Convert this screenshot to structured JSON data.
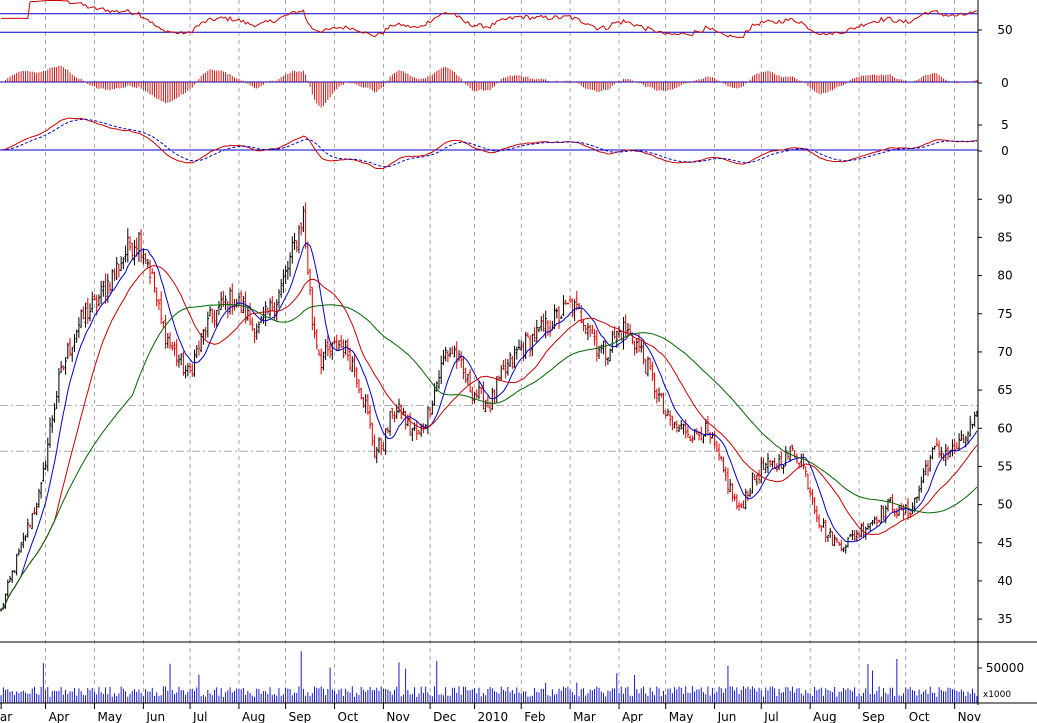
{
  "chart_data": {
    "type": "candlestick",
    "x_axis": {
      "months": [
        "ar",
        "Apr",
        "May",
        "Jun",
        "Jul",
        "Aug",
        "Sep",
        "Oct",
        "Nov",
        "Dec",
        "2010",
        "Feb",
        "Mar",
        "Apr",
        "May",
        "Jun",
        "Jul",
        "Aug",
        "Sep",
        "Oct",
        "Nov"
      ],
      "month_starts": [
        0,
        20,
        42,
        64,
        85,
        107,
        128,
        150,
        172,
        193,
        213,
        234,
        256,
        278,
        299,
        321,
        342,
        364,
        386,
        407,
        429
      ],
      "n_days": 440
    },
    "panels": {
      "rsi": {
        "yticks": [
          "50"
        ],
        "guides": [
          70,
          30
        ],
        "ylim": [
          0,
          100
        ]
      },
      "histogram": {
        "yticks": [
          "0"
        ],
        "ylim": [
          -4,
          2.5
        ]
      },
      "macd": {
        "yticks": [
          "5",
          "0"
        ],
        "ylim": [
          -5,
          8
        ]
      },
      "price": {
        "yticks": [
          "90",
          "85",
          "80",
          "75",
          "70",
          "65",
          "60",
          "55",
          "50",
          "45",
          "40",
          "35"
        ],
        "ylim": [
          32,
          92
        ],
        "guides": [
          63,
          57
        ]
      },
      "volume": {
        "yticks": [
          "50000"
        ],
        "unit_label": "x1000",
        "ylim": [
          0,
          80000
        ]
      }
    },
    "price_anchors": [
      [
        0,
        36
      ],
      [
        5,
        41
      ],
      [
        12,
        47
      ],
      [
        18,
        52
      ],
      [
        22,
        60
      ],
      [
        26,
        66
      ],
      [
        30,
        70
      ],
      [
        34,
        73
      ],
      [
        38,
        75
      ],
      [
        42,
        76
      ],
      [
        46,
        78
      ],
      [
        50,
        80
      ],
      [
        54,
        82
      ],
      [
        58,
        84
      ],
      [
        62,
        85
      ],
      [
        66,
        82
      ],
      [
        69,
        78
      ],
      [
        72,
        74
      ],
      [
        76,
        71
      ],
      [
        80,
        69
      ],
      [
        84,
        67
      ],
      [
        88,
        70
      ],
      [
        92,
        73
      ],
      [
        96,
        75
      ],
      [
        100,
        76
      ],
      [
        104,
        77
      ],
      [
        108,
        76
      ],
      [
        112,
        74
      ],
      [
        116,
        73
      ],
      [
        120,
        75
      ],
      [
        124,
        77
      ],
      [
        128,
        80
      ],
      [
        132,
        84
      ],
      [
        136,
        88
      ],
      [
        140,
        74
      ],
      [
        144,
        69
      ],
      [
        148,
        70
      ],
      [
        152,
        71
      ],
      [
        156,
        70
      ],
      [
        160,
        67
      ],
      [
        164,
        63
      ],
      [
        168,
        57
      ],
      [
        172,
        58
      ],
      [
        176,
        62
      ],
      [
        180,
        62
      ],
      [
        184,
        60
      ],
      [
        188,
        59
      ],
      [
        192,
        62
      ],
      [
        196,
        66
      ],
      [
        200,
        70
      ],
      [
        204,
        70
      ],
      [
        208,
        67
      ],
      [
        212,
        65
      ],
      [
        216,
        64
      ],
      [
        220,
        63
      ],
      [
        224,
        66
      ],
      [
        228,
        68
      ],
      [
        232,
        70
      ],
      [
        236,
        71
      ],
      [
        240,
        72
      ],
      [
        244,
        73
      ],
      [
        248,
        74
      ],
      [
        252,
        75
      ],
      [
        256,
        76
      ],
      [
        260,
        75
      ],
      [
        264,
        74
      ],
      [
        268,
        71
      ],
      [
        272,
        70
      ],
      [
        276,
        72
      ],
      [
        280,
        73
      ],
      [
        284,
        72
      ],
      [
        288,
        70
      ],
      [
        292,
        67
      ],
      [
        296,
        64
      ],
      [
        300,
        61
      ],
      [
        304,
        60
      ],
      [
        308,
        60
      ],
      [
        312,
        59
      ],
      [
        316,
        60
      ],
      [
        320,
        58
      ],
      [
        324,
        55
      ],
      [
        328,
        52
      ],
      [
        332,
        49
      ],
      [
        336,
        52
      ],
      [
        340,
        54
      ],
      [
        344,
        55
      ],
      [
        348,
        55
      ],
      [
        352,
        56
      ],
      [
        356,
        57
      ],
      [
        360,
        56
      ],
      [
        364,
        52
      ],
      [
        368,
        48
      ],
      [
        372,
        46
      ],
      [
        376,
        45
      ],
      [
        380,
        45
      ],
      [
        384,
        46
      ],
      [
        388,
        47
      ],
      [
        392,
        48
      ],
      [
        396,
        49
      ],
      [
        400,
        50
      ],
      [
        404,
        49
      ],
      [
        408,
        49
      ],
      [
        412,
        51
      ],
      [
        416,
        55
      ],
      [
        420,
        57
      ],
      [
        424,
        57
      ],
      [
        428,
        57
      ],
      [
        432,
        58
      ],
      [
        436,
        60
      ],
      [
        439,
        61
      ]
    ],
    "series": [
      {
        "name": "",
        "kind": "ma_short",
        "period": 10,
        "color": "#0000cc"
      },
      {
        "name": "",
        "kind": "ma_mid",
        "period": 25,
        "color": "#cc0000"
      },
      {
        "name": "",
        "kind": "ma_long",
        "period": 60,
        "color": "#006600"
      }
    ],
    "colors": {
      "up": "#000000",
      "down": "#dd0000",
      "guide": "#0000cc",
      "grid": "#888888",
      "volume": "#0000cc"
    },
    "grid": true,
    "yaxis_position": "right"
  }
}
